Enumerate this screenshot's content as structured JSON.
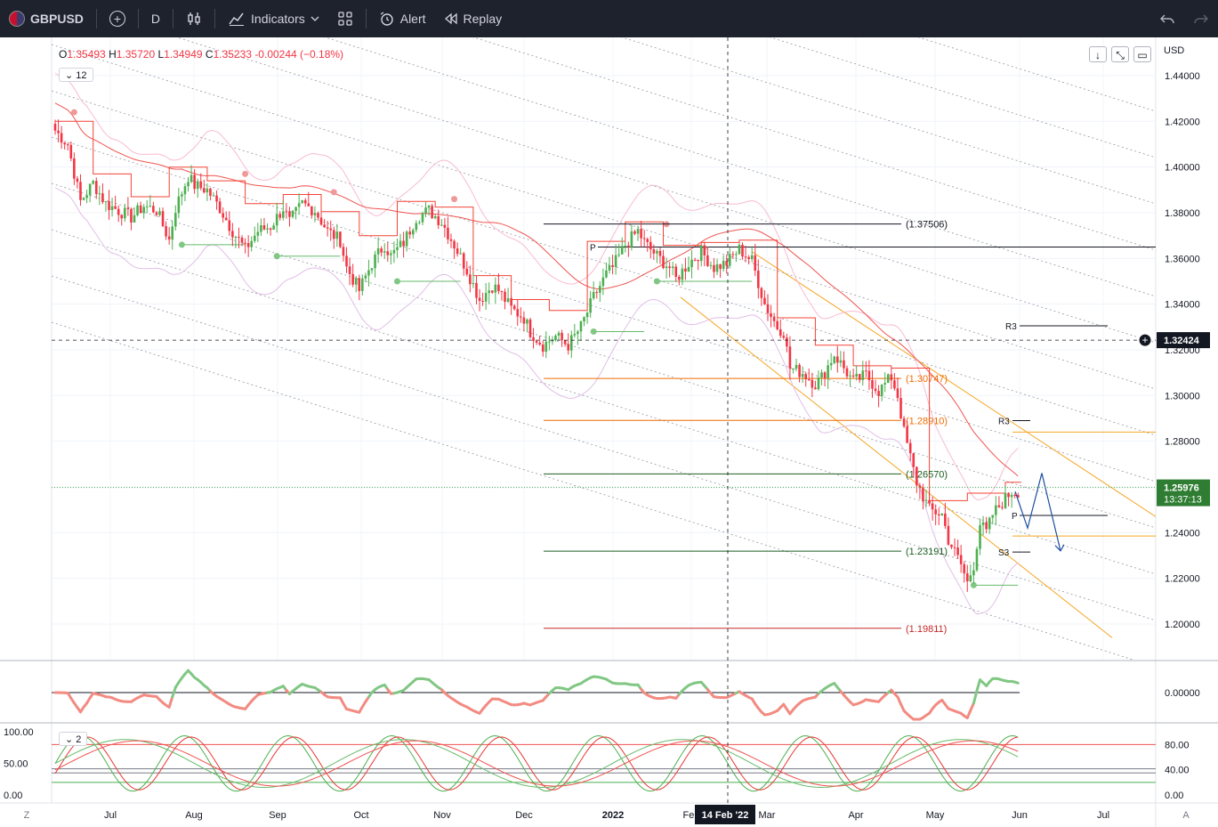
{
  "toolbar": {
    "symbol": "GBPUSD",
    "interval": "D",
    "indicators": "Indicators",
    "alert": "Alert",
    "replay": "Replay"
  },
  "legend": {
    "o_label": "O",
    "o": "1.35493",
    "h_label": "H",
    "h": "1.35720",
    "l_label": "L",
    "l": "1.34949",
    "c_label": "C",
    "c": "1.35233",
    "chg": "-0.00244",
    "chg_pct": "(−0.18%)",
    "indicator_count": "12",
    "stoch_count": "2"
  },
  "price_axis": {
    "currency": "USD",
    "crosshair_price": "1.32424",
    "last_price": "1.25976",
    "countdown": "13:37:13",
    "osc_zero": "0.00000"
  },
  "colors": {
    "up": "#4caf50",
    "down": "#f23645",
    "accent": "#2962ff"
  },
  "chart_data": {
    "type": "candlestick",
    "symbol": "GBPUSD",
    "interval": "D",
    "y_ticks": [
      1.2,
      1.22,
      1.24,
      1.26,
      1.28,
      1.3,
      1.32,
      1.34,
      1.36,
      1.38,
      1.4,
      1.42,
      1.44
    ],
    "y_tick_labels": [
      "1.20000",
      "1.22000",
      "1.24000",
      "1.26000",
      "1.28000",
      "1.30000",
      "1.32000",
      "1.34000",
      "1.36000",
      "1.38000",
      "1.40000",
      "1.42000",
      "1.44000"
    ],
    "ylim": [
      1.183,
      1.459
    ],
    "x_ticks": [
      "Jul",
      "Aug",
      "Sep",
      "Oct",
      "Nov",
      "Dec",
      "2022",
      "Feb",
      "Mar",
      "Apr",
      "May",
      "Jun",
      "Jul"
    ],
    "crosshair_date": "14 Feb '22",
    "close_path": [
      [
        0,
        1.416
      ],
      [
        4,
        1.41
      ],
      [
        8,
        1.385
      ],
      [
        12,
        1.393
      ],
      [
        16,
        1.384
      ],
      [
        20,
        1.381
      ],
      [
        24,
        1.378
      ],
      [
        28,
        1.383
      ],
      [
        32,
        1.381
      ],
      [
        36,
        1.368
      ],
      [
        38,
        1.382
      ],
      [
        42,
        1.396
      ],
      [
        44,
        1.392
      ],
      [
        48,
        1.39
      ],
      [
        52,
        1.382
      ],
      [
        56,
        1.372
      ],
      [
        60,
        1.364
      ],
      [
        64,
        1.372
      ],
      [
        68,
        1.374
      ],
      [
        72,
        1.382
      ],
      [
        74,
        1.376
      ],
      [
        78,
        1.384
      ],
      [
        82,
        1.381
      ],
      [
        86,
        1.372
      ],
      [
        90,
        1.368
      ],
      [
        92,
        1.356
      ],
      [
        96,
        1.346
      ],
      [
        100,
        1.358
      ],
      [
        104,
        1.366
      ],
      [
        106,
        1.361
      ],
      [
        110,
        1.367
      ],
      [
        114,
        1.378
      ],
      [
        118,
        1.381
      ],
      [
        122,
        1.376
      ],
      [
        126,
        1.366
      ],
      [
        130,
        1.355
      ],
      [
        134,
        1.342
      ],
      [
        138,
        1.348
      ],
      [
        140,
        1.346
      ],
      [
        144,
        1.338
      ],
      [
        148,
        1.334
      ],
      [
        150,
        1.328
      ],
      [
        154,
        1.322
      ],
      [
        158,
        1.326
      ],
      [
        162,
        1.322
      ],
      [
        166,
        1.33
      ],
      [
        170,
        1.343
      ],
      [
        174,
        1.353
      ],
      [
        176,
        1.356
      ],
      [
        180,
        1.366
      ],
      [
        184,
        1.372
      ],
      [
        186,
        1.367
      ],
      [
        190,
        1.361
      ],
      [
        194,
        1.356
      ],
      [
        196,
        1.351
      ],
      [
        200,
        1.358
      ],
      [
        204,
        1.363
      ],
      [
        208,
        1.356
      ],
      [
        212,
        1.358
      ],
      [
        216,
        1.364
      ],
      [
        220,
        1.359
      ],
      [
        224,
        1.34
      ],
      [
        228,
        1.33
      ],
      [
        230,
        1.328
      ],
      [
        232,
        1.312
      ],
      [
        236,
        1.31
      ],
      [
        240,
        1.305
      ],
      [
        242,
        1.308
      ],
      [
        246,
        1.318
      ],
      [
        248,
        1.314
      ],
      [
        252,
        1.306
      ],
      [
        256,
        1.309
      ],
      [
        260,
        1.302
      ],
      [
        262,
        1.305
      ],
      [
        264,
        1.308
      ],
      [
        266,
        1.3
      ],
      [
        268,
        1.284
      ],
      [
        272,
        1.262
      ],
      [
        276,
        1.25
      ],
      [
        280,
        1.248
      ],
      [
        282,
        1.237
      ],
      [
        286,
        1.226
      ],
      [
        288,
        1.218
      ],
      [
        290,
        1.226
      ],
      [
        292,
        1.244
      ],
      [
        294,
        1.24
      ],
      [
        296,
        1.248
      ],
      [
        300,
        1.255
      ],
      [
        302,
        1.258
      ],
      [
        304,
        1.258
      ]
    ],
    "horizontal_levels": [
      {
        "label": "(1.37506)",
        "value": 1.37506,
        "color": "#131722"
      },
      {
        "label": "(1.30747)",
        "value": 1.30747,
        "color": "#ef6c00"
      },
      {
        "label": "(1.28910)",
        "value": 1.2891,
        "color": "#ef6c00"
      },
      {
        "label": "(1.26570)",
        "value": 1.2657,
        "color": "#1b5e20"
      },
      {
        "label": "(1.23191)",
        "value": 1.23191,
        "color": "#1b5e20"
      },
      {
        "label": "(1.19811)",
        "value": 1.19811,
        "color": "#c62828"
      }
    ],
    "pivot_labels": [
      {
        "label": "P",
        "value": 1.365
      },
      {
        "label": "R3",
        "value": 1.3305
      },
      {
        "label": "R3",
        "value": 1.289
      },
      {
        "label": "P",
        "value": 1.2475
      },
      {
        "label": "S3",
        "value": 1.2315
      }
    ],
    "oscillator": {
      "zero_label": "0.00000"
    },
    "stochastic": {
      "y_ticks_left": [
        "100.00",
        "50.00",
        "0.00"
      ],
      "y_ticks_right": [
        "80.00",
        "40.00",
        "0.00"
      ],
      "upper": 80,
      "lower": 20,
      "mid": 50
    }
  }
}
